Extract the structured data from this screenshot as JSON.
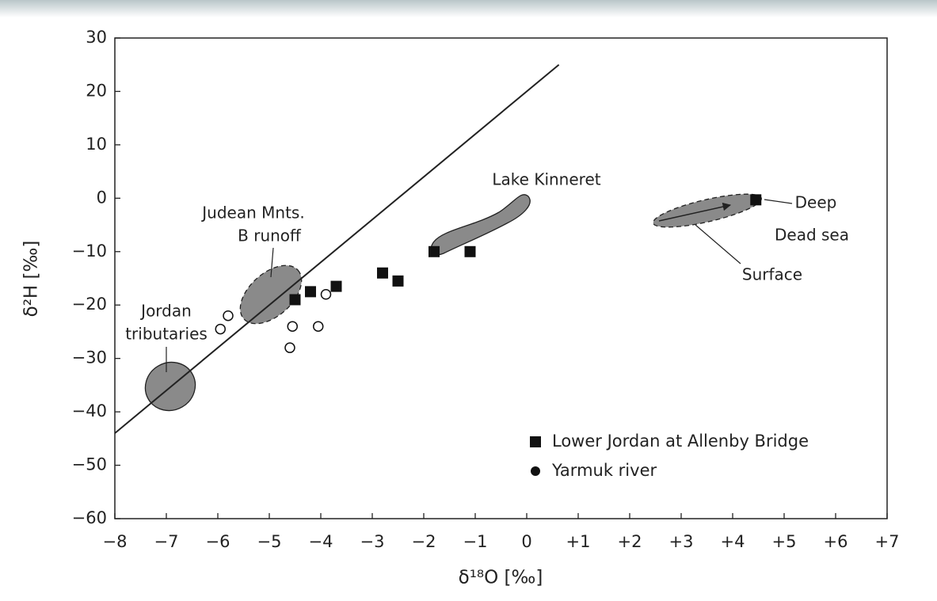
{
  "chart_data": {
    "type": "scatter",
    "xlabel": "δ¹⁸O [‰]",
    "ylabel": "δ²H [‰]",
    "xlim": [
      -8,
      7
    ],
    "ylim": [
      -60,
      30
    ],
    "xticks": [
      {
        "value": -8,
        "label": "−8"
      },
      {
        "value": -7,
        "label": "−7"
      },
      {
        "value": -6,
        "label": "−6"
      },
      {
        "value": -5,
        "label": "−5"
      },
      {
        "value": -4,
        "label": "−4"
      },
      {
        "value": -3,
        "label": "−3"
      },
      {
        "value": -2,
        "label": "−2"
      },
      {
        "value": -1,
        "label": "−1"
      },
      0,
      {
        "value": 1,
        "label": "+1"
      },
      {
        "value": 2,
        "label": "+2"
      },
      {
        "value": 3,
        "label": "+3"
      },
      {
        "value": 4,
        "label": "+4"
      },
      {
        "value": 5,
        "label": "+5"
      },
      {
        "value": 6,
        "label": "+6"
      },
      {
        "value": 7,
        "label": "+7"
      }
    ],
    "yticks": [
      {
        "value": -60,
        "label": "−60"
      },
      {
        "value": -50,
        "label": "−50"
      },
      {
        "value": -40,
        "label": "−40"
      },
      {
        "value": -30,
        "label": "−30"
      },
      {
        "value": -20,
        "label": "−20"
      },
      {
        "value": -10,
        "label": "−10"
      },
      0,
      10,
      20,
      30
    ],
    "series": [
      {
        "name": "Lower Jordan at Allenby Bridge",
        "color": "#111111",
        "marker": "square",
        "x": [
          -4.5,
          -4.2,
          -3.7,
          -2.8,
          -2.5,
          -1.8,
          -1.1,
          4.45
        ],
        "values": [
          -19,
          -17.5,
          -16.5,
          -14,
          -15.5,
          -10,
          -10,
          -0.3
        ]
      },
      {
        "name": "Yarmuk river",
        "color": "#111111",
        "marker": "circle",
        "x": [
          -5.95,
          -5.8,
          -4.55,
          -4.6,
          -4.05,
          -3.9
        ],
        "values": [
          -24.5,
          -22,
          -24,
          -28,
          -24,
          -18
        ]
      }
    ],
    "line": {
      "x": [
        -8,
        0.625
      ],
      "values": [
        -44,
        25
      ]
    },
    "annotations": [
      [
        "Jordan",
        "tributaries"
      ],
      [
        "Judean Mnts.",
        "B runoff"
      ],
      [
        "Lake Kinneret"
      ],
      [
        "Deep"
      ],
      [
        "Dead sea"
      ],
      [
        "Surface"
      ]
    ]
  }
}
